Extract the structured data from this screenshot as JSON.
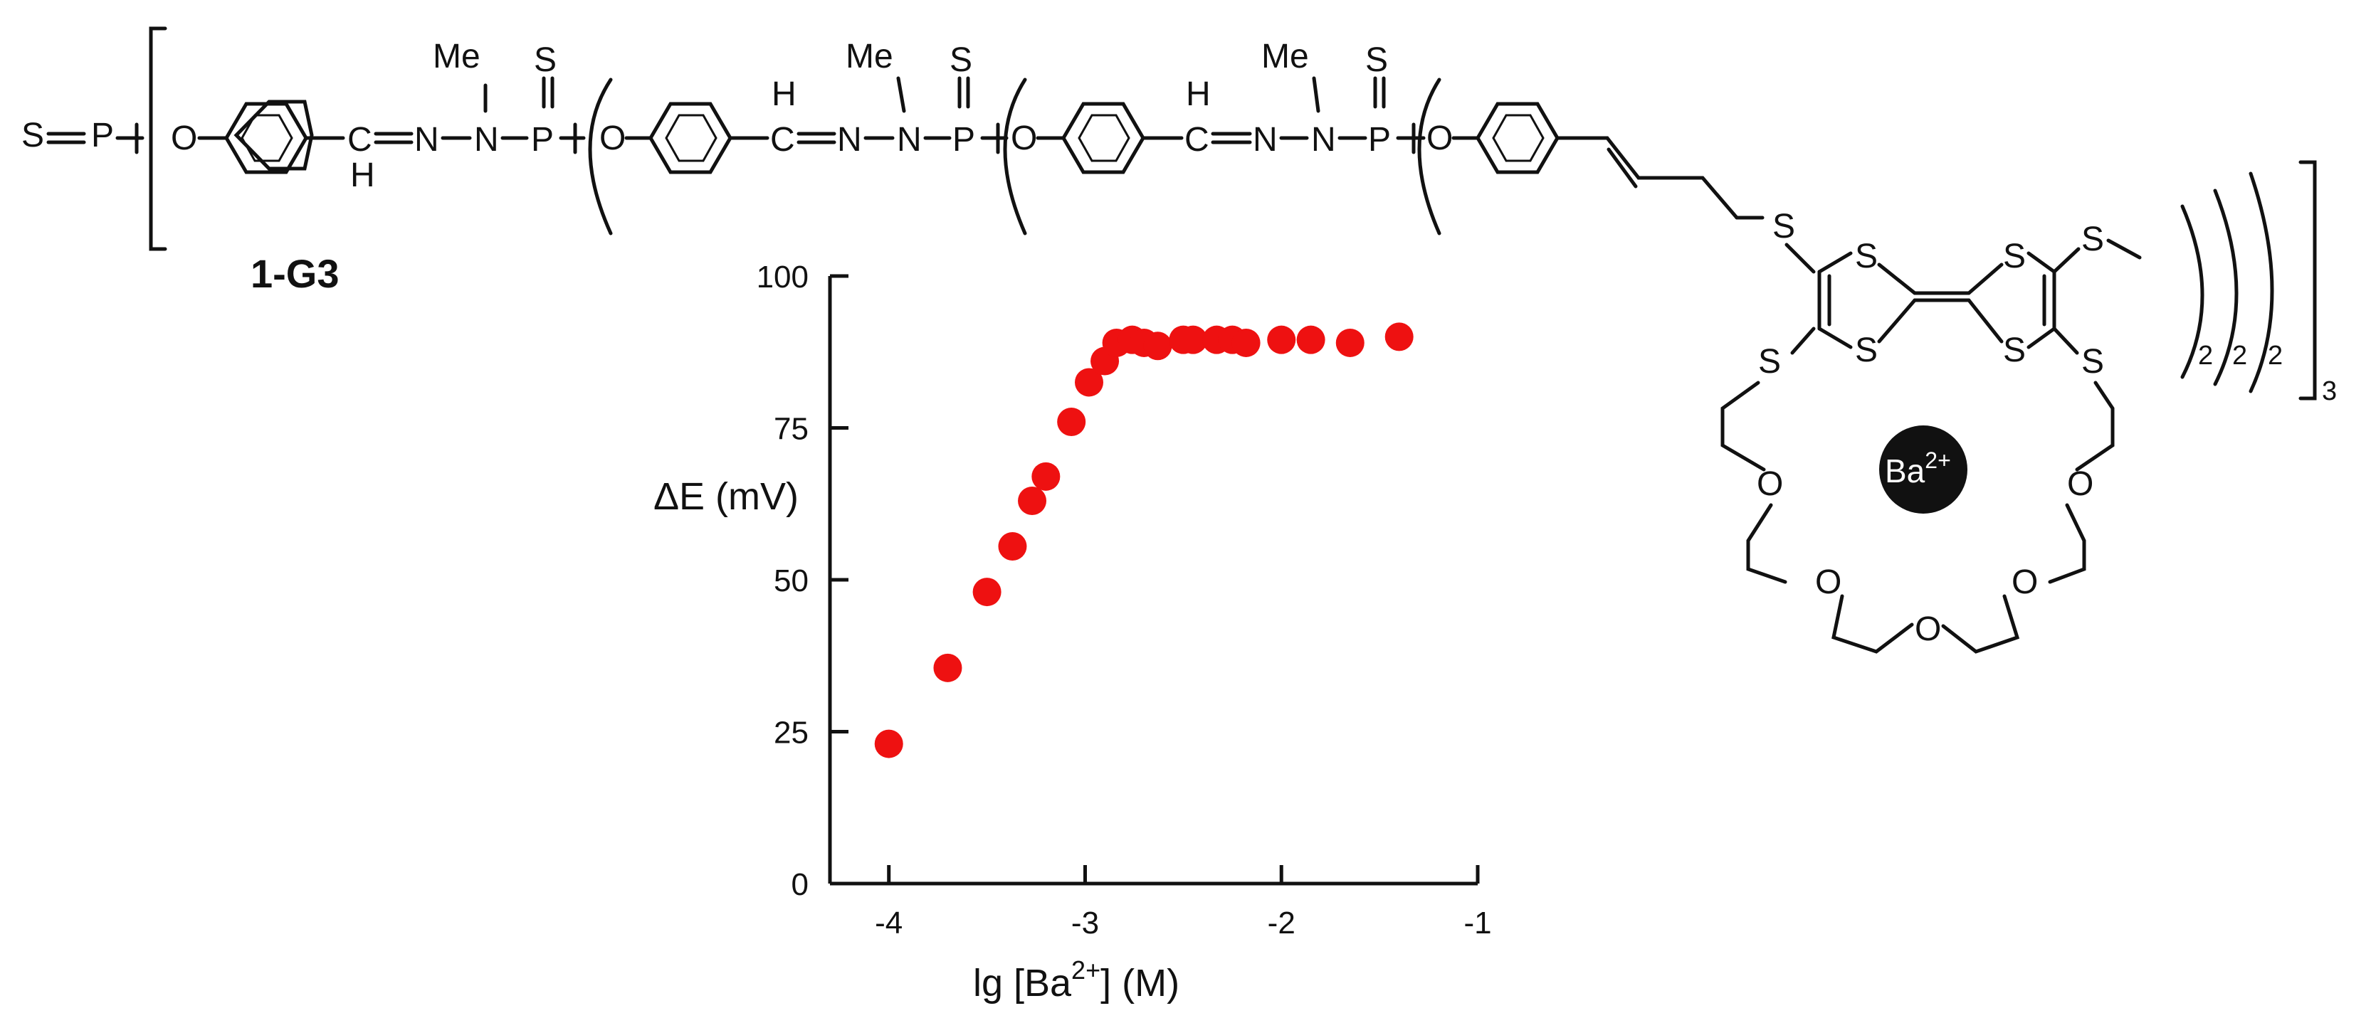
{
  "compound": {
    "label": "1-G3",
    "atoms": {
      "sulfur": "S",
      "phosphorus": "P",
      "oxygen": "O",
      "nitrogen": "N",
      "carbon": "C",
      "hydrogen": "H",
      "methyl": "Me"
    },
    "repeat_subscripts": [
      "2",
      "2",
      "2",
      "3"
    ],
    "ion": "Ba",
    "ion_charge": "2+"
  },
  "chart_data": {
    "type": "scatter",
    "title": "",
    "xlabel": "lg [Ba2+] (M)",
    "xlabel_parts": {
      "pre": "lg [Ba",
      "sup": "2+",
      "post": "] (M)"
    },
    "ylabel": "ΔE (mV)",
    "xlim": [
      -4.3,
      -1
    ],
    "ylim": [
      0,
      100
    ],
    "x_ticks": [
      -4,
      -3,
      -2,
      -1
    ],
    "x_tick_labels": [
      "-4",
      "-3",
      "-2",
      "-1"
    ],
    "y_ticks": [
      0,
      25,
      50,
      75,
      100
    ],
    "y_tick_labels": [
      "0",
      "25",
      "50",
      "75",
      "100"
    ],
    "marker_color": "#ee1111",
    "series": [
      {
        "name": "ΔE",
        "points": [
          {
            "x": -4.0,
            "y": 23
          },
          {
            "x": -3.7,
            "y": 35.5
          },
          {
            "x": -3.5,
            "y": 48
          },
          {
            "x": -3.37,
            "y": 55.5
          },
          {
            "x": -3.27,
            "y": 63
          },
          {
            "x": -3.2,
            "y": 67
          },
          {
            "x": -3.07,
            "y": 76
          },
          {
            "x": -2.98,
            "y": 82.5
          },
          {
            "x": -2.9,
            "y": 86
          },
          {
            "x": -2.84,
            "y": 89
          },
          {
            "x": -2.76,
            "y": 89.5
          },
          {
            "x": -2.7,
            "y": 89
          },
          {
            "x": -2.63,
            "y": 88.5
          },
          {
            "x": -2.5,
            "y": 89.5
          },
          {
            "x": -2.45,
            "y": 89.5
          },
          {
            "x": -2.33,
            "y": 89.5
          },
          {
            "x": -2.25,
            "y": 89.5
          },
          {
            "x": -2.18,
            "y": 89
          },
          {
            "x": -2.0,
            "y": 89.5
          },
          {
            "x": -1.85,
            "y": 89.5
          },
          {
            "x": -1.65,
            "y": 89
          },
          {
            "x": -1.4,
            "y": 90
          }
        ]
      }
    ]
  }
}
